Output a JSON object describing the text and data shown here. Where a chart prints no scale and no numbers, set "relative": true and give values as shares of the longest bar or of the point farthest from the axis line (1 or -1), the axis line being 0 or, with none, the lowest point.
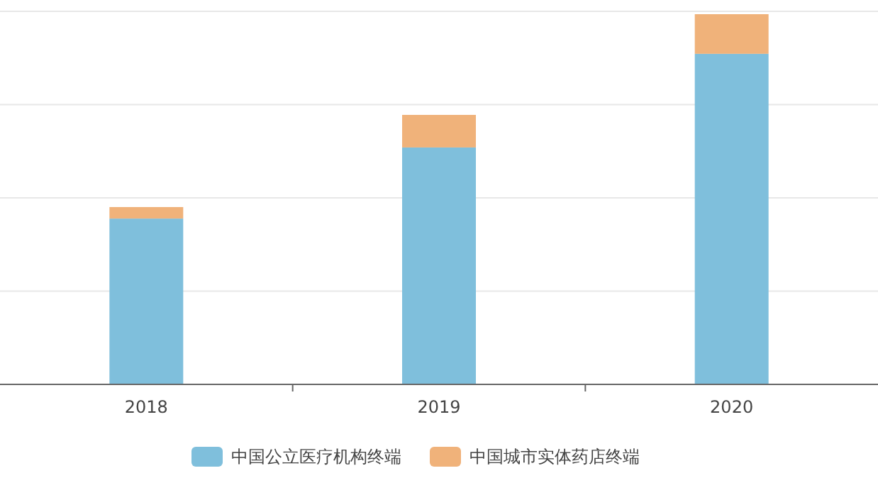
{
  "chart_data": {
    "type": "bar",
    "stacked": true,
    "relative": true,
    "categories": [
      "2018",
      "2019",
      "2020"
    ],
    "series": [
      {
        "name": "中国公立医疗机构终端",
        "color": "#7fbfdc",
        "values": [
          0.448,
          0.64,
          0.893
        ]
      },
      {
        "name": "中国城市实体药店终端",
        "color": "#f0b27a",
        "values": [
          0.031,
          0.088,
          0.107
        ]
      }
    ],
    "grid": "y",
    "legend": "bottom"
  }
}
